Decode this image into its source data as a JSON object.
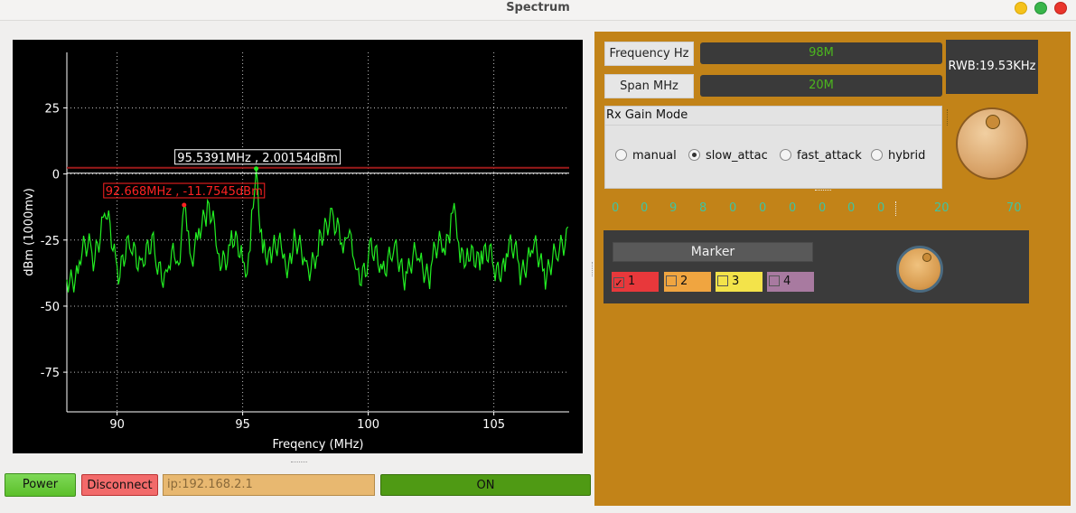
{
  "window": {
    "title": "Spectrum"
  },
  "plot": {
    "marker1_label": "95.5391MHz , 2.00154dBm",
    "marker2_label": "92.668MHz , -11.7545dBm",
    "colors": {
      "trace": "#22ee22",
      "marker1": "#ffffff",
      "marker2": "#ff2222",
      "background": "#000000"
    }
  },
  "chart_data": {
    "type": "line",
    "xlabel": "Freqency (MHz)",
    "ylabel": "dBm (1000mv)",
    "xlim": [
      88,
      108
    ],
    "ylim": [
      -90,
      46
    ],
    "x_ticks": [
      90,
      95,
      100,
      105
    ],
    "y_ticks": [
      25,
      0,
      -25,
      -50,
      -75
    ],
    "reference_level": 2,
    "grid": true,
    "series": [
      {
        "color": "#22ee22",
        "x": [
          88.0,
          88.5,
          89.0,
          89.5,
          90.0,
          90.5,
          91.0,
          91.5,
          92.0,
          92.4,
          92.67,
          92.9,
          93.2,
          93.6,
          94.0,
          94.5,
          95.0,
          95.3,
          95.54,
          95.8,
          96.2,
          96.6,
          97.0,
          97.5,
          98.0,
          98.5,
          99.0,
          99.2,
          99.5,
          100.0,
          100.5,
          101.0,
          101.5,
          102.0,
          102.5,
          103.0,
          103.3,
          103.6,
          104.0,
          104.5,
          105.0,
          105.5,
          106.0,
          106.5,
          107.0,
          107.5,
          107.95
        ],
        "y": [
          -40,
          -33,
          -30,
          -15,
          -35,
          -28,
          -32,
          -30,
          -37,
          -33,
          -12,
          -30,
          -25,
          -10,
          -30,
          -27,
          -33,
          -29,
          2,
          -30,
          -28,
          -32,
          -29,
          -33,
          -31,
          -13,
          -30,
          -24,
          -36,
          -32,
          -34,
          -30,
          -37,
          -32,
          -35,
          -28,
          -15,
          -26,
          -33,
          -29,
          -36,
          -30,
          -34,
          -29,
          -36,
          -32,
          -20
        ]
      }
    ],
    "markers": [
      {
        "x": 95.5391,
        "y": 2.00154,
        "label": "95.5391MHz , 2.00154dBm",
        "color": "#ffffff"
      },
      {
        "x": 92.668,
        "y": -11.7545,
        "label": "92.668MHz , -11.7545dBm",
        "color": "#ff2222"
      }
    ]
  },
  "controls": {
    "power_label": "Power",
    "disconnect_label": "Disconnect",
    "ip_placeholder": "ip:192.168.2.1",
    "on_label": "ON"
  },
  "panel": {
    "frequency_label": "Frequency Hz",
    "frequency_value": "98M",
    "span_label": "Span MHz",
    "span_value": "20M",
    "rwb_text": "RWB:19.53KHz",
    "gain_mode_title": "Rx Gain Mode",
    "gain_modes": [
      {
        "label": "manual",
        "selected": false
      },
      {
        "label": "slow_attac",
        "selected": true
      },
      {
        "label": "fast_attack",
        "selected": false
      },
      {
        "label": "hybrid",
        "selected": false
      }
    ],
    "digits": [
      "0",
      "0",
      "9",
      "8",
      "0",
      "0",
      "0",
      "0",
      "0",
      "0"
    ],
    "gain_values": [
      "20",
      "70"
    ],
    "marker_title": "Marker",
    "markers": [
      {
        "label": "1",
        "checked": true,
        "color": "#e8383b"
      },
      {
        "label": "2",
        "checked": false,
        "color": "#f0a540"
      },
      {
        "label": "3",
        "checked": false,
        "color": "#f3e34a"
      },
      {
        "label": "4",
        "checked": false,
        "color": "#a87aa0"
      }
    ]
  }
}
